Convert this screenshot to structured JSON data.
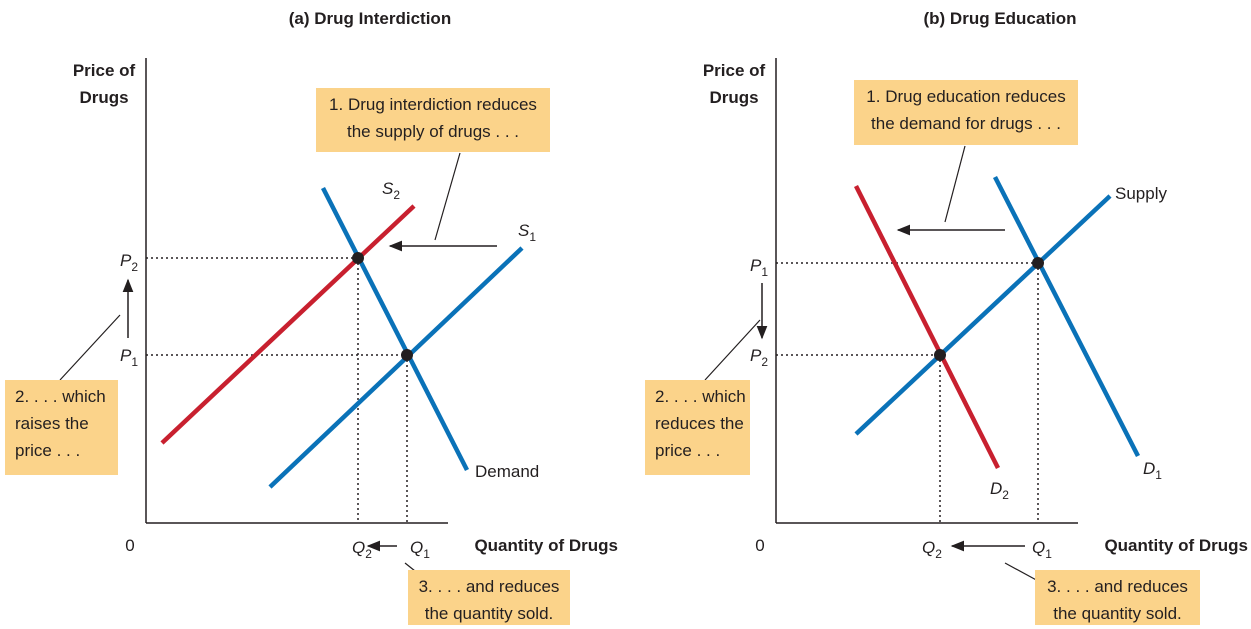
{
  "panels": [
    {
      "title": "(a) Drug Interdiction",
      "y_axis_label": [
        "Price of",
        "Drugs"
      ],
      "x_axis_label": "Quantity of Drugs",
      "origin": "0",
      "curves": [
        {
          "label": {
            "main": "S",
            "sub": "2"
          },
          "color": "#c8202f"
        },
        {
          "label": {
            "main": "S",
            "sub": "1"
          },
          "color": "#0a72b8"
        },
        {
          "label": {
            "main": "Demand"
          },
          "color": "#0a72b8"
        }
      ],
      "price_labels": [
        {
          "main": "P",
          "sub": "2"
        },
        {
          "main": "P",
          "sub": "1"
        }
      ],
      "quantity_labels": [
        {
          "main": "Q",
          "sub": "2"
        },
        {
          "main": "Q",
          "sub": "1"
        }
      ],
      "annotations": [
        [
          "1. Drug interdiction reduces",
          "the supply of drugs . . ."
        ],
        [
          "2. . . . which",
          "raises the",
          "price . . ."
        ],
        [
          "3. . . . and reduces",
          "the quantity sold."
        ]
      ]
    },
    {
      "title": "(b) Drug Education",
      "y_axis_label": [
        "Price of",
        "Drugs"
      ],
      "x_axis_label": "Quantity of Drugs",
      "origin": "0",
      "curves": [
        {
          "label": {
            "main": "Supply"
          },
          "color": "#0a72b8"
        },
        {
          "label": {
            "main": "D",
            "sub": "1"
          },
          "color": "#0a72b8"
        },
        {
          "label": {
            "main": "D",
            "sub": "2"
          },
          "color": "#c8202f"
        }
      ],
      "price_labels": [
        {
          "main": "P",
          "sub": "1"
        },
        {
          "main": "P",
          "sub": "2"
        }
      ],
      "quantity_labels": [
        {
          "main": "Q",
          "sub": "2"
        },
        {
          "main": "Q",
          "sub": "1"
        }
      ],
      "annotations": [
        [
          "1. Drug education reduces",
          "the demand for drugs . . ."
        ],
        [
          "2. . . . which",
          "reduces the",
          "price . . ."
        ],
        [
          "3. . . . and reduces",
          "the quantity sold."
        ]
      ]
    }
  ]
}
